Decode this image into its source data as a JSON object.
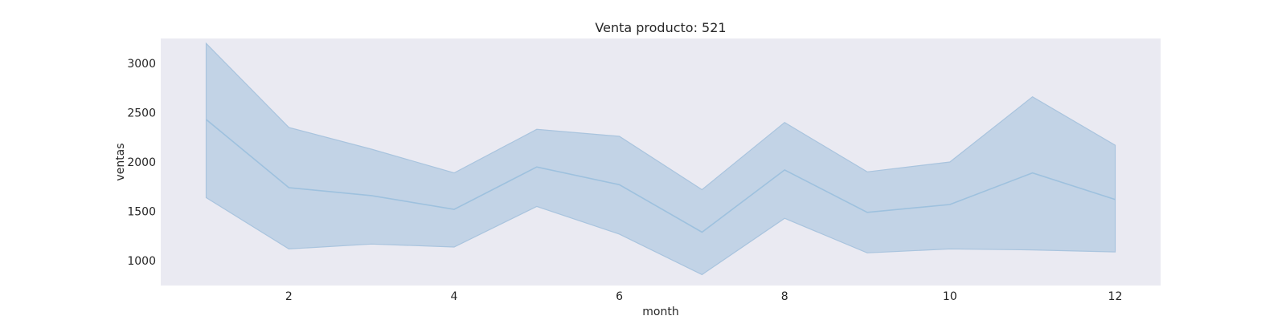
{
  "chart_data": {
    "type": "line",
    "title": "Venta producto: 521",
    "xlabel": "month",
    "ylabel": "ventas",
    "xlim": [
      0.45,
      12.55
    ],
    "ylim": [
      750,
      3250
    ],
    "xticks": [
      2,
      4,
      6,
      8,
      10,
      12
    ],
    "yticks": [
      1000,
      1500,
      2000,
      2500,
      3000
    ],
    "grid": false,
    "background": "#eaeaf2",
    "line_color": "#9ec1de",
    "band_color": "#c2d3e6",
    "series": [
      {
        "x": [
          1,
          2,
          3,
          4,
          5,
          6,
          7,
          8,
          9,
          10,
          11,
          12
        ],
        "y": [
          2430,
          1740,
          1660,
          1520,
          1950,
          1770,
          1290,
          1920,
          1490,
          1570,
          1890,
          1620
        ],
        "ci_upper": [
          3200,
          2350,
          2130,
          1890,
          2330,
          2260,
          1720,
          2400,
          1900,
          2000,
          2660,
          2170
        ],
        "ci_lower": [
          1640,
          1120,
          1170,
          1140,
          1550,
          1270,
          860,
          1430,
          1080,
          1120,
          1110,
          1090
        ]
      }
    ]
  }
}
